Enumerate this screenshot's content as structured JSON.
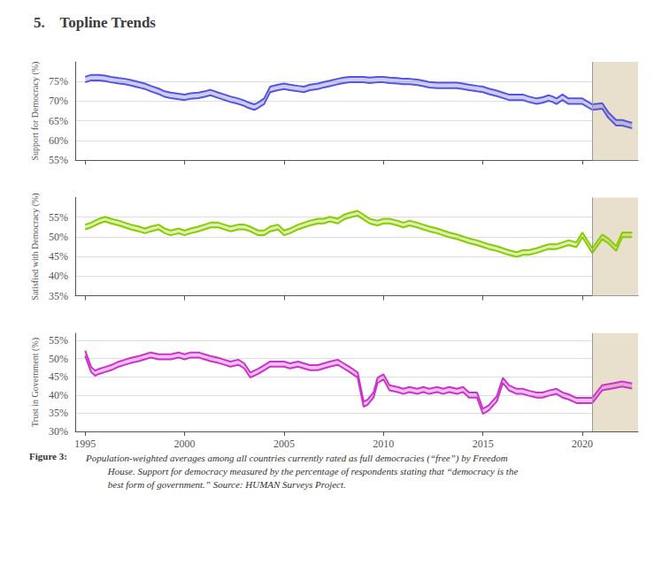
{
  "title": "5.    Topline Trends",
  "annotations": [
    "Figure 3:",
    " Population-weighted averages among all countries currently rated as full democracies (“free”) by Freedom\n          House. Support for democracy measured by the percentage of respondents stating that “democracy is the\n          best form of government.” Source: HUMAN Surveys Project."
  ],
  "shade": {
    "x": [
      2020.5,
      2022.8
    ],
    "color": "#e8e0cc"
  },
  "vline": {
    "x": 2020.5,
    "color": "#999999"
  },
  "chart_data": [
    {
      "type": "band",
      "ylabel": "Support for Democracy (%)",
      "x": [
        1995.0,
        1995.3,
        1995.7,
        1996.0,
        1996.3,
        1996.7,
        1997.0,
        1997.3,
        1997.7,
        1998.0,
        1998.3,
        1998.7,
        1999.0,
        1999.3,
        1999.7,
        2000.0,
        2000.3,
        2000.7,
        2001.0,
        2001.3,
        2001.7,
        2002.0,
        2002.3,
        2002.7,
        2003.0,
        2003.2,
        2003.5,
        2003.7,
        2004.0,
        2004.3,
        2004.7,
        2005.0,
        2005.3,
        2005.7,
        2006.0,
        2006.3,
        2006.7,
        2007.0,
        2007.3,
        2007.7,
        2008.0,
        2008.3,
        2008.7,
        2009.0,
        2009.3,
        2009.7,
        2010.0,
        2010.3,
        2010.7,
        2011.0,
        2011.3,
        2011.7,
        2012.0,
        2012.3,
        2012.7,
        2013.0,
        2013.3,
        2013.7,
        2014.0,
        2014.3,
        2014.7,
        2015.0,
        2015.3,
        2015.7,
        2016.0,
        2016.3,
        2016.7,
        2017.0,
        2017.3,
        2017.7,
        2018.0,
        2018.3,
        2018.5,
        2018.7,
        2019.0,
        2019.3,
        2019.7,
        2020.0,
        2020.5,
        2021.0,
        2021.3,
        2021.7,
        2022.0,
        2022.5
      ],
      "series": [
        {
          "color": "#5555dd",
          "values": [
            76.2,
            76.7,
            76.7,
            76.5,
            76.2,
            75.9,
            75.7,
            75.4,
            74.9,
            74.5,
            73.9,
            73.2,
            72.5,
            72.2,
            71.9,
            71.7,
            72.0,
            72.2,
            72.5,
            72.9,
            72.2,
            71.7,
            71.2,
            70.7,
            70.2,
            69.7,
            69.2,
            69.7,
            70.7,
            73.7,
            74.2,
            74.5,
            74.2,
            73.9,
            73.7,
            74.2,
            74.5,
            74.9,
            75.2,
            75.7,
            76.0,
            76.2,
            76.2,
            76.2,
            76.0,
            76.2,
            76.2,
            76.0,
            75.9,
            75.7,
            75.7,
            75.5,
            75.2,
            74.9,
            74.7,
            74.7,
            74.7,
            74.7,
            74.5,
            74.2,
            73.9,
            73.7,
            73.2,
            72.7,
            72.2,
            71.7,
            71.7,
            71.7,
            71.2,
            70.7,
            71.0,
            71.5,
            71.2,
            70.7,
            71.7,
            70.7,
            70.7,
            70.7,
            69.2,
            69.5,
            67.2,
            65.2,
            65.2,
            64.5
          ]
        },
        {
          "color": "#5555dd",
          "values": [
            74.8,
            75.3,
            75.3,
            75.1,
            74.8,
            74.5,
            74.3,
            74.0,
            73.5,
            73.1,
            72.5,
            71.8,
            71.1,
            70.8,
            70.5,
            70.3,
            70.6,
            70.8,
            71.1,
            71.5,
            70.8,
            70.3,
            69.8,
            69.3,
            68.8,
            68.3,
            67.8,
            68.3,
            69.3,
            72.3,
            72.8,
            73.1,
            72.8,
            72.5,
            72.3,
            72.8,
            73.1,
            73.5,
            73.8,
            74.3,
            74.6,
            74.8,
            74.8,
            74.8,
            74.6,
            74.8,
            74.8,
            74.6,
            74.5,
            74.3,
            74.3,
            74.1,
            73.8,
            73.5,
            73.3,
            73.3,
            73.3,
            73.3,
            73.1,
            72.8,
            72.5,
            72.3,
            71.8,
            71.3,
            70.8,
            70.3,
            70.3,
            70.3,
            69.8,
            69.3,
            69.6,
            70.1,
            69.8,
            69.3,
            70.3,
            69.3,
            69.3,
            69.3,
            67.8,
            68.1,
            65.8,
            63.8,
            63.8,
            63.1
          ]
        }
      ],
      "xlim": [
        1994.5,
        2022.8
      ],
      "xticks": [
        1995,
        2000,
        2005,
        2010,
        2015,
        2020
      ],
      "ylim": [
        55,
        80
      ],
      "yticks": [
        {
          "value": 55,
          "label": "55%"
        },
        {
          "value": 60,
          "label": "60%"
        },
        {
          "value": 65,
          "label": "65%"
        },
        {
          "value": 70,
          "label": "70%"
        },
        {
          "value": 75,
          "label": "75%"
        }
      ],
      "grid": true,
      "tick_labels": "y"
    },
    {
      "type": "band",
      "ylabel": "Satisfied with Democracy (%)",
      "x": [
        1995.0,
        1995.3,
        1995.7,
        1996.0,
        1996.3,
        1996.7,
        1997.0,
        1997.3,
        1997.7,
        1998.0,
        1998.3,
        1998.7,
        1999.0,
        1999.3,
        1999.7,
        2000.0,
        2000.3,
        2000.7,
        2001.0,
        2001.3,
        2001.7,
        2002.0,
        2002.3,
        2002.7,
        2003.0,
        2003.3,
        2003.7,
        2004.0,
        2004.3,
        2004.7,
        2005.0,
        2005.3,
        2005.7,
        2006.0,
        2006.3,
        2006.7,
        2007.0,
        2007.3,
        2007.7,
        2008.0,
        2008.3,
        2008.7,
        2009.0,
        2009.3,
        2009.7,
        2010.0,
        2010.3,
        2010.7,
        2011.0,
        2011.3,
        2011.7,
        2012.0,
        2012.3,
        2012.7,
        2013.0,
        2013.3,
        2013.7,
        2014.0,
        2014.3,
        2014.7,
        2015.0,
        2015.3,
        2015.7,
        2016.0,
        2016.3,
        2016.7,
        2017.0,
        2017.3,
        2017.7,
        2018.0,
        2018.3,
        2018.7,
        2019.0,
        2019.3,
        2019.7,
        2020.0,
        2020.5,
        2021.0,
        2021.3,
        2021.7,
        2022.0,
        2022.5
      ],
      "series": [
        {
          "color": "#88cc00",
          "values": [
            53.1,
            53.6,
            54.6,
            55.1,
            54.6,
            54.1,
            53.6,
            53.1,
            52.6,
            52.1,
            52.6,
            53.1,
            52.1,
            51.6,
            52.1,
            51.6,
            52.1,
            52.6,
            53.1,
            53.6,
            53.6,
            53.1,
            52.6,
            53.1,
            53.1,
            52.6,
            51.6,
            51.6,
            52.6,
            53.1,
            51.6,
            52.1,
            53.1,
            53.6,
            54.1,
            54.6,
            54.6,
            55.1,
            54.6,
            55.6,
            56.1,
            56.6,
            55.6,
            54.6,
            54.1,
            54.6,
            54.6,
            54.1,
            53.6,
            54.1,
            53.6,
            53.1,
            52.6,
            52.1,
            51.6,
            51.1,
            50.6,
            50.1,
            49.6,
            49.1,
            48.6,
            48.1,
            47.6,
            47.1,
            46.6,
            46.1,
            46.6,
            46.6,
            47.1,
            47.6,
            48.1,
            48.1,
            48.6,
            49.1,
            48.6,
            51.1,
            47.1,
            50.6,
            49.6,
            47.6,
            51.1,
            51.1
          ]
        },
        {
          "color": "#88cc00",
          "values": [
            51.9,
            52.4,
            53.4,
            53.9,
            53.4,
            52.9,
            52.4,
            51.9,
            51.4,
            50.9,
            51.4,
            51.9,
            50.9,
            50.4,
            50.9,
            50.4,
            50.9,
            51.4,
            51.9,
            52.4,
            52.4,
            51.9,
            51.4,
            51.9,
            51.9,
            51.4,
            50.4,
            50.4,
            51.4,
            51.9,
            50.4,
            50.9,
            51.9,
            52.4,
            52.9,
            53.4,
            53.4,
            53.9,
            53.4,
            54.4,
            54.9,
            55.4,
            54.4,
            53.4,
            52.9,
            53.4,
            53.4,
            52.9,
            52.4,
            52.9,
            52.4,
            51.9,
            51.4,
            50.9,
            50.4,
            49.9,
            49.4,
            48.9,
            48.4,
            47.9,
            47.4,
            46.9,
            46.4,
            45.9,
            45.4,
            44.9,
            45.4,
            45.4,
            45.9,
            46.4,
            46.9,
            46.9,
            47.4,
            47.9,
            47.4,
            49.9,
            45.9,
            49.4,
            48.4,
            46.4,
            49.9,
            49.9
          ]
        }
      ],
      "xlim": [
        1994.5,
        2022.8
      ],
      "xticks": [
        1995,
        2000,
        2005,
        2010,
        2015,
        2020
      ],
      "ylim": [
        35,
        60
      ],
      "yticks": [
        {
          "value": 35,
          "label": "35%"
        },
        {
          "value": 40,
          "label": "40%"
        },
        {
          "value": 45,
          "label": "45%"
        },
        {
          "value": 50,
          "label": "50%"
        },
        {
          "value": 55,
          "label": "55%"
        }
      ],
      "grid": true,
      "tick_labels": "y"
    },
    {
      "type": "band",
      "ylabel": "Trust in Government (%)",
      "x": [
        1995.0,
        1995.3,
        1995.5,
        1995.7,
        1996.0,
        1996.3,
        1996.7,
        1997.0,
        1997.3,
        1997.7,
        1998.0,
        1998.3,
        1998.7,
        1999.0,
        1999.3,
        1999.7,
        2000.0,
        2000.3,
        2000.7,
        2001.0,
        2001.3,
        2001.7,
        2002.0,
        2002.3,
        2002.7,
        2003.0,
        2003.3,
        2003.7,
        2004.0,
        2004.3,
        2004.7,
        2005.0,
        2005.3,
        2005.7,
        2006.0,
        2006.3,
        2006.7,
        2007.0,
        2007.3,
        2007.7,
        2008.0,
        2008.3,
        2008.7,
        2009.0,
        2009.2,
        2009.5,
        2009.7,
        2010.0,
        2010.3,
        2010.7,
        2011.0,
        2011.3,
        2011.7,
        2012.0,
        2012.3,
        2012.7,
        2013.0,
        2013.3,
        2013.7,
        2014.0,
        2014.3,
        2014.7,
        2015.0,
        2015.3,
        2015.7,
        2016.0,
        2016.3,
        2016.7,
        2017.0,
        2017.3,
        2017.7,
        2018.0,
        2018.3,
        2018.7,
        2019.0,
        2019.3,
        2019.7,
        2020.0,
        2020.5,
        2021.0,
        2021.5,
        2022.0,
        2022.5
      ],
      "series": [
        {
          "color": "#cc33cc",
          "values": [
            52.2,
            47.7,
            46.7,
            47.2,
            47.7,
            48.2,
            49.2,
            49.7,
            50.2,
            50.7,
            51.2,
            51.7,
            51.2,
            51.2,
            51.2,
            51.7,
            51.2,
            51.7,
            51.7,
            51.2,
            50.7,
            50.2,
            49.7,
            49.2,
            49.7,
            48.7,
            46.2,
            47.2,
            48.2,
            49.2,
            49.2,
            49.2,
            48.7,
            49.2,
            48.7,
            48.2,
            48.2,
            48.7,
            49.2,
            49.7,
            48.7,
            47.7,
            46.2,
            38.2,
            38.7,
            40.7,
            44.7,
            45.7,
            42.7,
            42.2,
            41.7,
            42.2,
            41.7,
            42.2,
            41.7,
            42.2,
            41.7,
            42.2,
            41.7,
            42.2,
            40.7,
            40.7,
            36.2,
            37.2,
            39.7,
            44.7,
            42.7,
            41.7,
            41.7,
            41.2,
            40.7,
            40.7,
            41.2,
            41.7,
            40.7,
            40.2,
            39.2,
            39.2,
            39.2,
            42.7,
            43.2,
            43.7,
            43.2
          ]
        },
        {
          "color": "#cc33cc",
          "values": [
            50.8,
            46.3,
            45.3,
            45.8,
            46.3,
            46.8,
            47.8,
            48.3,
            48.8,
            49.3,
            49.8,
            50.3,
            49.8,
            49.8,
            49.8,
            50.3,
            49.8,
            50.3,
            50.3,
            49.8,
            49.3,
            48.8,
            48.3,
            47.8,
            48.3,
            47.3,
            44.8,
            45.8,
            46.8,
            47.8,
            47.8,
            47.8,
            47.3,
            47.8,
            47.3,
            46.8,
            46.8,
            47.3,
            47.8,
            48.3,
            47.3,
            46.3,
            44.8,
            36.8,
            37.3,
            39.3,
            43.3,
            44.3,
            41.3,
            40.8,
            40.3,
            40.8,
            40.3,
            40.8,
            40.3,
            40.8,
            40.3,
            40.8,
            40.3,
            40.8,
            39.3,
            39.3,
            34.8,
            35.8,
            38.3,
            43.3,
            41.3,
            40.3,
            40.3,
            39.8,
            39.3,
            39.3,
            39.8,
            40.3,
            39.3,
            38.8,
            37.8,
            37.8,
            37.8,
            41.3,
            41.8,
            42.3,
            41.8
          ]
        }
      ],
      "xlim": [
        1994.5,
        2022.8
      ],
      "xticks": [
        1995,
        2000,
        2005,
        2010,
        2015,
        2020
      ],
      "ylim": [
        30,
        57
      ],
      "yticks": [
        {
          "value": 30,
          "label": "30%"
        },
        {
          "value": 35,
          "label": "35%"
        },
        {
          "value": 40,
          "label": "40%"
        },
        {
          "value": 45,
          "label": "45%"
        },
        {
          "value": 50,
          "label": "50%"
        },
        {
          "value": 55,
          "label": "55%"
        }
      ],
      "grid": true
    }
  ]
}
